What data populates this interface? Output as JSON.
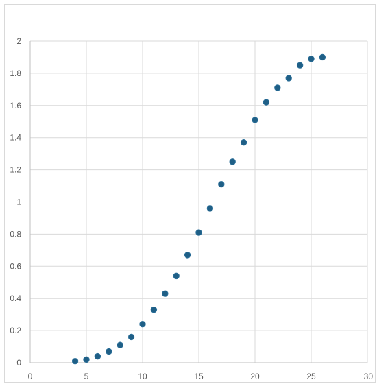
{
  "chart_data": {
    "type": "scatter",
    "title": "",
    "xlabel": "",
    "ylabel": "",
    "xlim": [
      0,
      30
    ],
    "ylim": [
      0,
      2
    ],
    "x_ticks": [
      0,
      5,
      10,
      15,
      20,
      25,
      30
    ],
    "y_ticks": [
      0,
      0.2,
      0.4,
      0.6,
      0.8,
      1,
      1.2,
      1.4,
      1.6,
      1.8,
      2
    ],
    "grid": true,
    "legend": "none",
    "marker_color": "#1f5f86",
    "series": [
      {
        "x": [
          4,
          5,
          6,
          7,
          8,
          9,
          10,
          11,
          12,
          13,
          14,
          15,
          16,
          17,
          18,
          19,
          20,
          21,
          22,
          23,
          24,
          25,
          26
        ],
        "y": [
          0.01,
          0.02,
          0.04,
          0.07,
          0.11,
          0.16,
          0.24,
          0.33,
          0.43,
          0.54,
          0.67,
          0.81,
          0.96,
          1.11,
          1.25,
          1.37,
          1.51,
          1.62,
          1.71,
          1.77,
          1.85,
          1.89,
          1.9
        ]
      }
    ]
  }
}
